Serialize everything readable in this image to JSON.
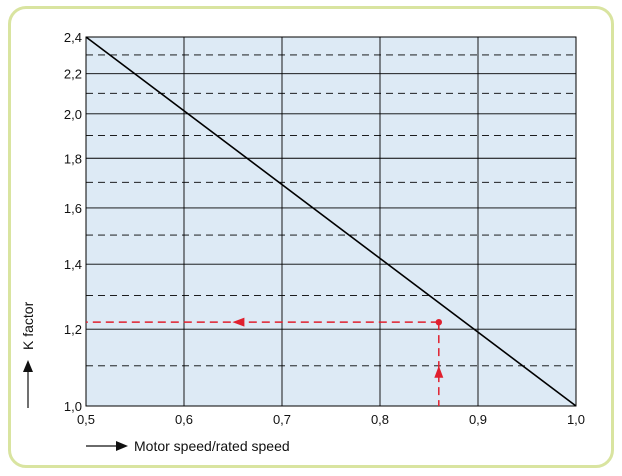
{
  "chart_data": {
    "type": "line",
    "title": "",
    "xlabel": "Motor speed/rated speed",
    "ylabel": "K factor",
    "xlim": [
      0.5,
      1.0
    ],
    "ylim": [
      1.0,
      2.4
    ],
    "x_ticks": [
      "0,5",
      "0,6",
      "0,7",
      "0,8",
      "0,9",
      "1,0"
    ],
    "y_ticks": [
      "1,0",
      "1,2",
      "1,4",
      "1,6",
      "1,8",
      "2,0",
      "2,2",
      "2,4"
    ],
    "y_scale": "log",
    "grid": true,
    "series": [
      {
        "x": [
          0.5,
          1.0
        ],
        "y": [
          2.4,
          1.0
        ]
      }
    ],
    "annotation": {
      "x": 0.86,
      "y": 1.22,
      "style": "dashed arrows",
      "color": "#e0202e"
    },
    "colors": {
      "plot_background": "#ddeaf5",
      "frame_border": "#d9e4a0",
      "line": "#000000"
    }
  }
}
